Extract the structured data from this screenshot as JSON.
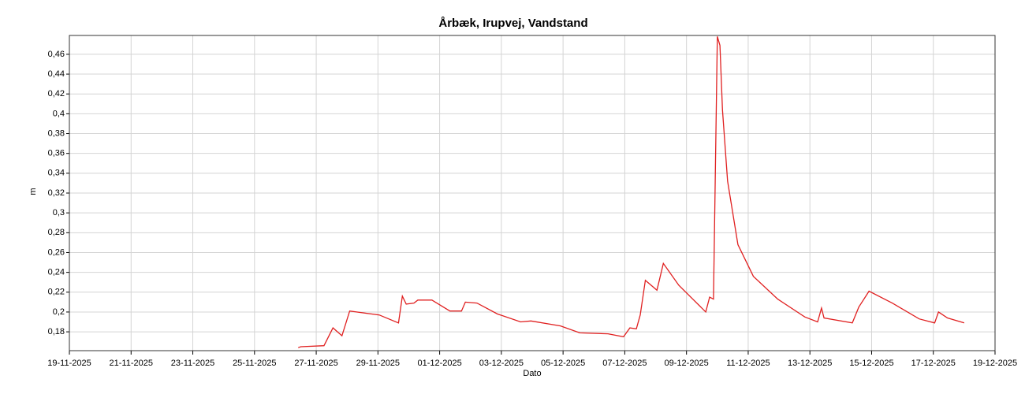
{
  "chart_data": {
    "type": "line",
    "title": "Årbæk, Irupvej, Vandstand",
    "x_label": "Dato",
    "y_label": "m",
    "x": [
      "2025-11-26T10:00",
      "2025-11-26T12:00",
      "2025-11-27T06:00",
      "2025-11-27T13:00",
      "2025-11-27T20:00",
      "2025-11-28T02:00",
      "2025-11-29T01:00",
      "2025-11-29T16:00",
      "2025-11-29T19:00",
      "2025-11-29T22:00",
      "2025-11-30T04:00",
      "2025-11-30T07:00",
      "2025-11-30T18:00",
      "2025-12-01T08:00",
      "2025-12-01T17:00",
      "2025-12-01T20:00",
      "2025-12-02T05:00",
      "2025-12-02T21:00",
      "2025-12-03T15:00",
      "2025-12-03T23:00",
      "2025-12-04T22:00",
      "2025-12-05T13:00",
      "2025-12-06T11:00",
      "2025-12-06T23:00",
      "2025-12-07T04:00",
      "2025-12-07T09:00",
      "2025-12-07T12:00",
      "2025-12-07T16:00",
      "2025-12-08T01:00",
      "2025-12-08T06:00",
      "2025-12-08T18:00",
      "2025-12-09T15:00",
      "2025-12-09T18:00",
      "2025-12-09T21:00",
      "2025-12-10T00:00",
      "2025-12-10T02:00",
      "2025-12-10T04:00",
      "2025-12-10T08:00",
      "2025-12-10T16:00",
      "2025-12-11T04:00",
      "2025-12-11T23:00",
      "2025-12-12T20:00",
      "2025-12-13T06:00",
      "2025-12-13T09:00",
      "2025-12-13T11:00",
      "2025-12-14T09:00",
      "2025-12-14T14:00",
      "2025-12-14T22:00",
      "2025-12-15T16:00",
      "2025-12-16T13:00",
      "2025-12-17T01:00",
      "2025-12-17T04:00",
      "2025-12-17T11:00",
      "2025-12-18T00:00"
    ],
    "series": [
      {
        "color": "#e02020",
        "values": [
          0.164,
          0.165,
          0.166,
          0.184,
          0.176,
          0.201,
          0.197,
          0.189,
          0.216,
          0.208,
          0.209,
          0.212,
          0.212,
          0.201,
          0.201,
          0.21,
          0.209,
          0.198,
          0.19,
          0.191,
          0.186,
          0.179,
          0.178,
          0.175,
          0.184,
          0.183,
          0.197,
          0.232,
          0.222,
          0.249,
          0.227,
          0.2,
          0.215,
          0.213,
          0.478,
          0.469,
          0.404,
          0.332,
          0.268,
          0.236,
          0.213,
          0.195,
          0.19,
          0.204,
          0.194,
          0.189,
          0.205,
          0.221,
          0.209,
          0.193,
          0.189,
          0.2,
          0.194,
          0.189
        ]
      }
    ],
    "xlim": [
      "2025-11-19",
      "2025-12-19"
    ],
    "xticks": [
      {
        "value": "2025-11-19",
        "label": "19-11-2025"
      },
      {
        "value": "2025-11-21",
        "label": "21-11-2025"
      },
      {
        "value": "2025-11-23",
        "label": "23-11-2025"
      },
      {
        "value": "2025-11-25",
        "label": "25-11-2025"
      },
      {
        "value": "2025-11-27",
        "label": "27-11-2025"
      },
      {
        "value": "2025-11-29",
        "label": "29-11-2025"
      },
      {
        "value": "2025-12-01",
        "label": "01-12-2025"
      },
      {
        "value": "2025-12-03",
        "label": "03-12-2025"
      },
      {
        "value": "2025-12-05",
        "label": "05-12-2025"
      },
      {
        "value": "2025-12-07",
        "label": "07-12-2025"
      },
      {
        "value": "2025-12-09",
        "label": "09-12-2025"
      },
      {
        "value": "2025-12-11",
        "label": "11-12-2025"
      },
      {
        "value": "2025-12-13",
        "label": "13-12-2025"
      },
      {
        "value": "2025-12-15",
        "label": "15-12-2025"
      },
      {
        "value": "2025-12-17",
        "label": "17-12-2025"
      },
      {
        "value": "2025-12-19",
        "label": "19-12-2025"
      }
    ],
    "ylim": [
      0.161,
      0.479
    ],
    "yticks": [
      {
        "value": 0.18,
        "label": "0,18"
      },
      {
        "value": 0.2,
        "label": "0,2"
      },
      {
        "value": 0.22,
        "label": "0,22"
      },
      {
        "value": 0.24,
        "label": "0,24"
      },
      {
        "value": 0.26,
        "label": "0,26"
      },
      {
        "value": 0.28,
        "label": "0,28"
      },
      {
        "value": 0.3,
        "label": "0,3"
      },
      {
        "value": 0.32,
        "label": "0,32"
      },
      {
        "value": 0.34,
        "label": "0,34"
      },
      {
        "value": 0.36,
        "label": "0,36"
      },
      {
        "value": 0.38,
        "label": "0,38"
      },
      {
        "value": 0.4,
        "label": "0,4"
      },
      {
        "value": 0.42,
        "label": "0,42"
      },
      {
        "value": 0.44,
        "label": "0,44"
      },
      {
        "value": 0.46,
        "label": "0,46"
      }
    ],
    "grid": true
  }
}
